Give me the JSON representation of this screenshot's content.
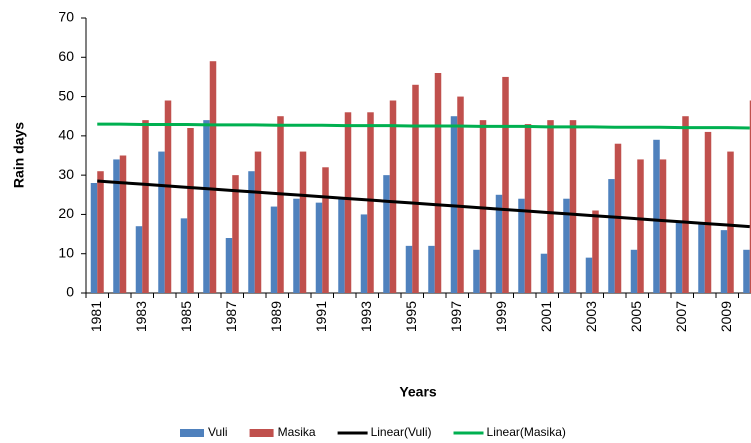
{
  "chart_data": {
    "type": "bar",
    "x_label": "Years",
    "y_label": "Rain days",
    "categories": [
      "1981",
      null,
      "1983",
      null,
      "1985",
      null,
      "1987",
      null,
      "1989",
      null,
      "1991",
      null,
      "1993",
      null,
      "1995",
      null,
      "1997",
      null,
      "1999",
      null,
      "2001",
      null,
      "2003",
      null,
      "2005",
      null,
      "2007",
      null,
      "2009",
      null
    ],
    "series": [
      {
        "name": "Vuli",
        "color": "#4f81bd",
        "type": "bar",
        "values": [
          28,
          34,
          17,
          36,
          19,
          44,
          14,
          31,
          22,
          24,
          23,
          24,
          20,
          30,
          12,
          12,
          45,
          11,
          25,
          24,
          10,
          24,
          9,
          29,
          11,
          39,
          18,
          18,
          16,
          11
        ]
      },
      {
        "name": "Masika",
        "color": "#c0504d",
        "type": "bar",
        "values": [
          31,
          35,
          44,
          49,
          42,
          59,
          30,
          36,
          45,
          36,
          32,
          46,
          46,
          49,
          53,
          56,
          50,
          44,
          55,
          43,
          44,
          44,
          21,
          38,
          34,
          34,
          45,
          41,
          36,
          49
        ]
      },
      {
        "name": "Linear(Vuli)",
        "color": "#000000",
        "type": "line",
        "values": [
          28.5,
          28.1,
          27.7,
          27.3,
          26.9,
          26.5,
          26.1,
          25.7,
          25.3,
          24.9,
          24.5,
          24.1,
          23.7,
          23.3,
          22.9,
          22.5,
          22.1,
          21.7,
          21.3,
          20.9,
          20.5,
          20.1,
          19.7,
          19.3,
          18.9,
          18.5,
          18.1,
          17.7,
          17.3,
          16.9
        ]
      },
      {
        "name": "Linear(Masika)",
        "color": "#00b050",
        "type": "line",
        "values": [
          43.0,
          43.0,
          42.9,
          42.9,
          42.9,
          42.8,
          42.8,
          42.8,
          42.7,
          42.7,
          42.7,
          42.6,
          42.6,
          42.6,
          42.5,
          42.5,
          42.5,
          42.4,
          42.4,
          42.4,
          42.3,
          42.3,
          42.3,
          42.2,
          42.2,
          42.2,
          42.1,
          42.1,
          42.1,
          42.0
        ]
      }
    ],
    "ylim": [
      0,
      70
    ],
    "yticks": [
      0,
      10,
      20,
      30,
      40,
      50,
      60,
      70
    ],
    "grid": false,
    "legend": "bottom"
  }
}
